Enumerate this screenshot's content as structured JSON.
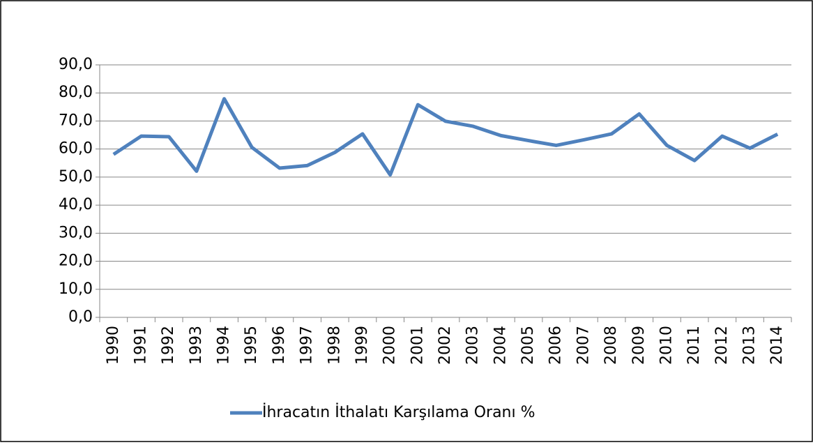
{
  "chart_data": {
    "type": "line",
    "categories": [
      "1990",
      "1991",
      "1992",
      "1993",
      "1994",
      "1995",
      "1996",
      "1997",
      "1998",
      "1999",
      "2000",
      "2001",
      "2002",
      "2003",
      "2004",
      "2005",
      "2006",
      "2007",
      "2008",
      "2009",
      "2010",
      "2011",
      "2012",
      "2013",
      "2014"
    ],
    "series": [
      {
        "name": "İhracatın İthalatı Karşılama Oranı %",
        "color": "#4f81bd",
        "values": [
          58.1,
          64.6,
          64.4,
          52.1,
          77.9,
          60.6,
          53.2,
          54.1,
          58.8,
          65.4,
          50.8,
          75.8,
          69.9,
          68.1,
          64.8,
          63.0,
          61.3,
          63.3,
          65.4,
          72.5,
          61.3,
          55.9,
          64.6,
          60.3,
          65.3
        ]
      }
    ],
    "ylim": [
      0,
      90
    ],
    "yticks": [
      {
        "value": 0,
        "label": "0,0"
      },
      {
        "value": 10,
        "label": "10,0"
      },
      {
        "value": 20,
        "label": "20,0"
      },
      {
        "value": 30,
        "label": "30,0"
      },
      {
        "value": 40,
        "label": "40,0"
      },
      {
        "value": 50,
        "label": "50,0"
      },
      {
        "value": 60,
        "label": "60,0"
      },
      {
        "value": 70,
        "label": "70,0"
      },
      {
        "value": 80,
        "label": "80,0"
      },
      {
        "value": 90,
        "label": "90,0"
      }
    ],
    "grid": true,
    "legend": "bottom"
  }
}
